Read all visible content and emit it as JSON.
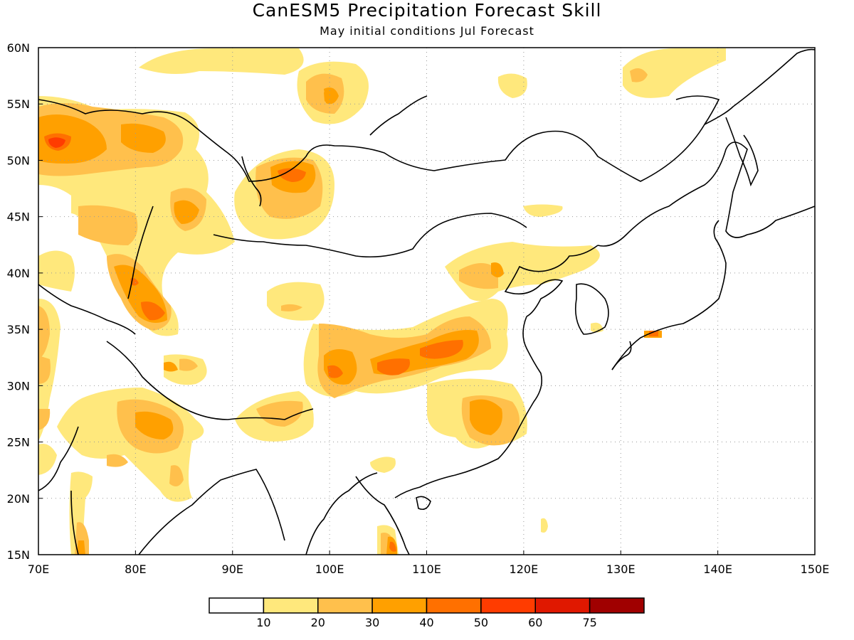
{
  "title": "CanESM5 Precipitation Forecast Skill",
  "subtitle": "May initial conditions  Jul Forecast",
  "map": {
    "lon_range": [
      70,
      150
    ],
    "lat_range": [
      15,
      60
    ],
    "lon_ticks": [
      "70E",
      "80E",
      "90E",
      "100E",
      "110E",
      "120E",
      "130E",
      "140E",
      "150E"
    ],
    "lat_ticks": [
      "15N",
      "20N",
      "25N",
      "30N",
      "35N",
      "40N",
      "45N",
      "50N",
      "55N",
      "60N"
    ],
    "gridlines": "dotted"
  },
  "colorbar": {
    "colors": [
      "#ffffff",
      "#ffe87c",
      "#ffc04c",
      "#ffa000",
      "#ff7000",
      "#ff3c00",
      "#e01800",
      "#a00000"
    ],
    "labels": [
      "10",
      "20",
      "30",
      "40",
      "50",
      "60",
      "75"
    ]
  },
  "skill_regions": [
    {
      "lon": 72.5,
      "lat": 51.5,
      "rx": 5.0,
      "ry": 3.5,
      "level": 3
    },
    {
      "lon": 72.5,
      "lat": 51.8,
      "rx": 2.0,
      "ry": 1.2,
      "level": 4
    },
    {
      "lon": 79.0,
      "lat": 51.5,
      "rx": 4.0,
      "ry": 2.5,
      "level": 2
    },
    {
      "lon": 96.0,
      "lat": 48.0,
      "rx": 4.5,
      "ry": 3.5,
      "level": 2
    },
    {
      "lon": 97.0,
      "lat": 48.6,
      "rx": 2.0,
      "ry": 1.2,
      "level": 3
    },
    {
      "lon": 85.0,
      "lat": 46.0,
      "rx": 2.5,
      "ry": 2.0,
      "level": 2
    },
    {
      "lon": 81.5,
      "lat": 37.5,
      "rx": 2.5,
      "ry": 4.0,
      "level": 2
    },
    {
      "lon": 82.2,
      "lat": 36.5,
      "rx": 1.2,
      "ry": 1.1,
      "level": 3
    },
    {
      "lon": 101.5,
      "lat": 31.5,
      "rx": 2.0,
      "ry": 1.3,
      "level": 3
    },
    {
      "lon": 106.5,
      "lat": 32.0,
      "rx": 2.5,
      "ry": 1.2,
      "level": 3
    },
    {
      "lon": 112.5,
      "lat": 33.0,
      "rx": 2.5,
      "ry": 1.2,
      "level": 3
    },
    {
      "lon": 116.5,
      "lat": 27.0,
      "rx": 2.5,
      "ry": 2.0,
      "level": 2
    },
    {
      "lon": 82.0,
      "lat": 27.0,
      "rx": 2.5,
      "ry": 1.5,
      "level": 2
    },
    {
      "lon": 100.0,
      "lat": 56.0,
      "rx": 2.0,
      "ry": 1.5,
      "level": 2
    },
    {
      "lon": 108.0,
      "lat": 16.5,
      "rx": 1.0,
      "ry": 1.5,
      "level": 2
    },
    {
      "lon": 74.0,
      "lat": 16.0,
      "rx": 0.8,
      "ry": 1.0,
      "level": 3
    },
    {
      "lon": 133.0,
      "lat": 34.5,
      "rx": 0.3,
      "ry": 0.3,
      "level": 3
    }
  ]
}
